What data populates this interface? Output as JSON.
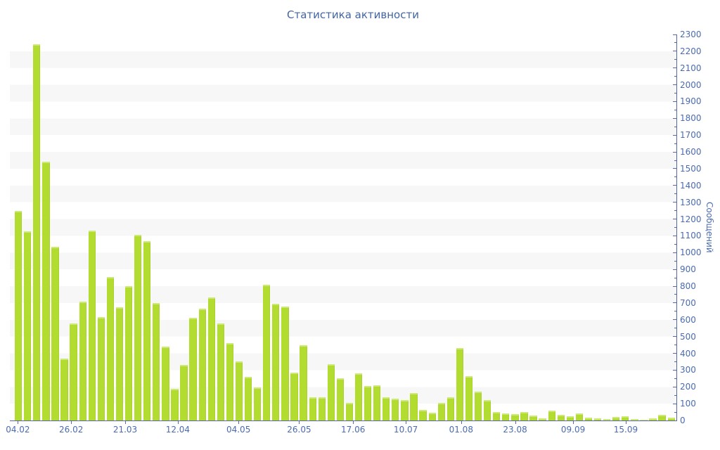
{
  "title": "Статистика активности",
  "colors": {
    "bar": "#b2dd30",
    "axis": "#5568a8",
    "label": "#4a6bb2",
    "title_color": "#4265a4",
    "stripe": "#f7f7f7"
  },
  "chart_data": {
    "type": "bar",
    "title": "Статистика активности",
    "xlabel": "",
    "ylabel": "Сообщений",
    "ylim": [
      0,
      2300
    ],
    "y_major_tick_step": 100,
    "y_minor_tick_step": 50,
    "y_tick_labels": [
      0,
      100,
      200,
      300,
      400,
      500,
      600,
      700,
      800,
      900,
      1000,
      1100,
      1200,
      1300,
      1400,
      1500,
      1600,
      1700,
      1800,
      1900,
      2000,
      2100,
      2200,
      2300
    ],
    "legend": "none",
    "grid": "horizontal striped bands every 100",
    "x_ticks": [
      {
        "label": "04.02",
        "pos_pct": 1.2
      },
      {
        "label": "26.02",
        "pos_pct": 9.2
      },
      {
        "label": "21.03",
        "pos_pct": 17.3
      },
      {
        "label": "12.04",
        "pos_pct": 25.2
      },
      {
        "label": "04.05",
        "pos_pct": 34.3
      },
      {
        "label": "26.05",
        "pos_pct": 43.4
      },
      {
        "label": "17.06",
        "pos_pct": 51.5
      },
      {
        "label": "10.07",
        "pos_pct": 59.4
      },
      {
        "label": "01.08",
        "pos_pct": 67.7
      },
      {
        "label": "23.08",
        "pos_pct": 75.8
      },
      {
        "label": "09.09",
        "pos_pct": 84.5
      },
      {
        "label": "15.09",
        "pos_pct": 92.4
      }
    ],
    "values": [
      1250,
      1125,
      2240,
      1540,
      1035,
      370,
      580,
      710,
      1130,
      615,
      855,
      675,
      800,
      1105,
      1070,
      700,
      440,
      190,
      330,
      610,
      665,
      735,
      580,
      460,
      350,
      260,
      195,
      810,
      695,
      680,
      285,
      450,
      140,
      140,
      335,
      250,
      105,
      280,
      205,
      210,
      140,
      130,
      123,
      163,
      64,
      45,
      103,
      137,
      430,
      265,
      170,
      120,
      50,
      43,
      38,
      50,
      28,
      12,
      60,
      35,
      25,
      40,
      18,
      14,
      8,
      19,
      26,
      8,
      5,
      14,
      33,
      17
    ]
  }
}
